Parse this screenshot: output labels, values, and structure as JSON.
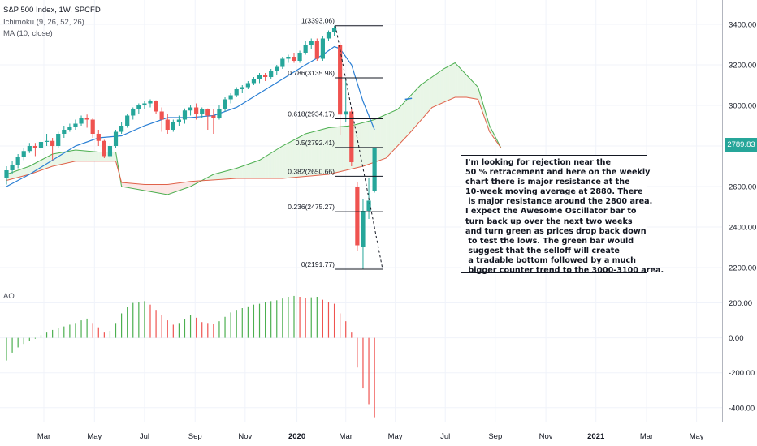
{
  "legend": {
    "title": "S&P 500 Index, 1W, SPCFD",
    "ichimoku": "Ichimoku (9, 26, 52, 26)",
    "ma": "MA (10, close)",
    "ao": "AO"
  },
  "colors": {
    "up": "#26a69a",
    "down": "#ef5350",
    "ma": "#2a7fd4",
    "cloud_top": "#4caf50",
    "cloud_bottom": "#e0624a",
    "cloud_fill": "#e9f6e7",
    "cloud_fill_red": "#fce7e6",
    "fib": "#131722",
    "ao_green": "#4caf50",
    "ao_red": "#ef5350"
  },
  "annotation": "I'm looking for rejection near the\n50 % retracement and here on the weekly\nchart there is major resistance at the\n10-week moving average at 2880. There\n is major resistance around the 2800 area.\nI expect the Awesome Oscillator bar to\nturn back up over the next two weeks\nand turn green as prices drop back down\n to test the lows. The green bar would\n suggest that the selloff will create\n a tradable bottom followed by a much\n bigger counter trend to the 3000-3100 area.",
  "current_price": "2789.83",
  "chart_data": [
    {
      "type": "candlestick",
      "title": "S&P 500 Index, 1W, SPCFD",
      "y_ticks": [
        2200,
        2400,
        2600,
        2800,
        3000,
        3200,
        3400
      ],
      "y_tick_labels": [
        "2200.00",
        "2400.00",
        "2600.00",
        "2800.00",
        "3000.00",
        "3200.00",
        "3400.00"
      ],
      "ylim": [
        2120,
        3520
      ],
      "x_tick_labels": [
        "Mar",
        "May",
        "Jul",
        "Sep",
        "Nov",
        "2020",
        "Mar",
        "May",
        "Jul",
        "Sep",
        "Nov",
        "2021",
        "Mar",
        "May"
      ],
      "x_tick_weeks": [
        6.5,
        15.3,
        24,
        32.8,
        41.5,
        50.5,
        59,
        67.6,
        76.3,
        85,
        93.8,
        102.5,
        111.3,
        120
      ],
      "candles": [
        {
          "w": 0,
          "o": 2640,
          "h": 2700,
          "l": 2610,
          "c": 2680
        },
        {
          "w": 1,
          "o": 2680,
          "h": 2725,
          "l": 2660,
          "c": 2705
        },
        {
          "w": 2,
          "o": 2705,
          "h": 2760,
          "l": 2690,
          "c": 2745
        },
        {
          "w": 3,
          "o": 2745,
          "h": 2790,
          "l": 2730,
          "c": 2775
        },
        {
          "w": 4,
          "o": 2775,
          "h": 2815,
          "l": 2765,
          "c": 2800
        },
        {
          "w": 5,
          "o": 2800,
          "h": 2815,
          "l": 2750,
          "c": 2790
        },
        {
          "w": 6,
          "o": 2790,
          "h": 2830,
          "l": 2775,
          "c": 2820
        },
        {
          "w": 7,
          "o": 2820,
          "h": 2860,
          "l": 2800,
          "c": 2825
        },
        {
          "w": 8,
          "o": 2825,
          "h": 2840,
          "l": 2730,
          "c": 2800
        },
        {
          "w": 9,
          "o": 2800,
          "h": 2870,
          "l": 2790,
          "c": 2860
        },
        {
          "w": 10,
          "o": 2860,
          "h": 2900,
          "l": 2840,
          "c": 2880
        },
        {
          "w": 11,
          "o": 2880,
          "h": 2910,
          "l": 2870,
          "c": 2895
        },
        {
          "w": 12,
          "o": 2895,
          "h": 2930,
          "l": 2880,
          "c": 2910
        },
        {
          "w": 13,
          "o": 2910,
          "h": 2950,
          "l": 2900,
          "c": 2940
        },
        {
          "w": 14,
          "o": 2940,
          "h": 2955,
          "l": 2890,
          "c": 2930
        },
        {
          "w": 15,
          "o": 2930,
          "h": 2940,
          "l": 2840,
          "c": 2860
        },
        {
          "w": 16,
          "o": 2860,
          "h": 2880,
          "l": 2800,
          "c": 2825
        },
        {
          "w": 17,
          "o": 2825,
          "h": 2830,
          "l": 2740,
          "c": 2750
        },
        {
          "w": 18,
          "o": 2750,
          "h": 2815,
          "l": 2740,
          "c": 2800
        },
        {
          "w": 19,
          "o": 2800,
          "h": 2880,
          "l": 2790,
          "c": 2870
        },
        {
          "w": 20,
          "o": 2870,
          "h": 2920,
          "l": 2860,
          "c": 2900
        },
        {
          "w": 21,
          "o": 2900,
          "h": 2960,
          "l": 2890,
          "c": 2950
        },
        {
          "w": 22,
          "o": 2950,
          "h": 2990,
          "l": 2930,
          "c": 2980
        },
        {
          "w": 23,
          "o": 2980,
          "h": 3010,
          "l": 2960,
          "c": 3000
        },
        {
          "w": 24,
          "o": 3000,
          "h": 3020,
          "l": 2980,
          "c": 3010
        },
        {
          "w": 25,
          "o": 3010,
          "h": 3030,
          "l": 2990,
          "c": 3020
        },
        {
          "w": 26,
          "o": 3020,
          "h": 3025,
          "l": 2960,
          "c": 2970
        },
        {
          "w": 27,
          "o": 2970,
          "h": 2990,
          "l": 2870,
          "c": 2930
        },
        {
          "w": 28,
          "o": 2930,
          "h": 2960,
          "l": 2860,
          "c": 2880
        },
        {
          "w": 29,
          "o": 2880,
          "h": 2930,
          "l": 2870,
          "c": 2920
        },
        {
          "w": 30,
          "o": 2920,
          "h": 2950,
          "l": 2900,
          "c": 2930
        },
        {
          "w": 31,
          "o": 2930,
          "h": 2985,
          "l": 2910,
          "c": 2975
        },
        {
          "w": 32,
          "o": 2975,
          "h": 3000,
          "l": 2950,
          "c": 2990
        },
        {
          "w": 33,
          "o": 2990,
          "h": 3010,
          "l": 2930,
          "c": 2960
        },
        {
          "w": 34,
          "o": 2960,
          "h": 2990,
          "l": 2940,
          "c": 2980
        },
        {
          "w": 35,
          "o": 2980,
          "h": 2985,
          "l": 2880,
          "c": 2950
        },
        {
          "w": 36,
          "o": 2950,
          "h": 2980,
          "l": 2860,
          "c": 2940
        },
        {
          "w": 37,
          "o": 2940,
          "h": 3000,
          "l": 2930,
          "c": 2980
        },
        {
          "w": 38,
          "o": 2980,
          "h": 3040,
          "l": 2970,
          "c": 3030
        },
        {
          "w": 39,
          "o": 3030,
          "h": 3060,
          "l": 3010,
          "c": 3050
        },
        {
          "w": 40,
          "o": 3050,
          "h": 3090,
          "l": 3040,
          "c": 3080
        },
        {
          "w": 41,
          "o": 3080,
          "h": 3100,
          "l": 3060,
          "c": 3090
        },
        {
          "w": 42,
          "o": 3090,
          "h": 3120,
          "l": 3080,
          "c": 3110
        },
        {
          "w": 43,
          "o": 3110,
          "h": 3140,
          "l": 3100,
          "c": 3130
        },
        {
          "w": 44,
          "o": 3130,
          "h": 3160,
          "l": 3110,
          "c": 3150
        },
        {
          "w": 45,
          "o": 3150,
          "h": 3160,
          "l": 3120,
          "c": 3140
        },
        {
          "w": 46,
          "o": 3140,
          "h": 3180,
          "l": 3130,
          "c": 3170
        },
        {
          "w": 47,
          "o": 3170,
          "h": 3200,
          "l": 3150,
          "c": 3190
        },
        {
          "w": 48,
          "o": 3190,
          "h": 3240,
          "l": 3180,
          "c": 3230
        },
        {
          "w": 49,
          "o": 3230,
          "h": 3250,
          "l": 3210,
          "c": 3240
        },
        {
          "w": 50,
          "o": 3240,
          "h": 3260,
          "l": 3210,
          "c": 3220
        },
        {
          "w": 51,
          "o": 3220,
          "h": 3270,
          "l": 3210,
          "c": 3260
        },
        {
          "w": 52,
          "o": 3260,
          "h": 3320,
          "l": 3250,
          "c": 3300
        },
        {
          "w": 53,
          "o": 3300,
          "h": 3330,
          "l": 3280,
          "c": 3320
        },
        {
          "w": 54,
          "o": 3320,
          "h": 3330,
          "l": 3220,
          "c": 3230
        },
        {
          "w": 55,
          "o": 3230,
          "h": 3340,
          "l": 3220,
          "c": 3330
        },
        {
          "w": 56,
          "o": 3330,
          "h": 3370,
          "l": 3320,
          "c": 3360
        },
        {
          "w": 57,
          "o": 3360,
          "h": 3393,
          "l": 3340,
          "c": 3380
        },
        {
          "w": 58,
          "o": 3300,
          "h": 3310,
          "l": 2855,
          "c": 2955
        },
        {
          "w": 59,
          "o": 2955,
          "h": 3130,
          "l": 2920,
          "c": 2970
        },
        {
          "w": 60,
          "o": 2970,
          "h": 2980,
          "l": 2700,
          "c": 2720
        },
        {
          "w": 61,
          "o": 2600,
          "h": 2620,
          "l": 2280,
          "c": 2310
        },
        {
          "w": 62,
          "o": 2300,
          "h": 2540,
          "l": 2191,
          "c": 2480
        },
        {
          "w": 63,
          "o": 2480,
          "h": 2640,
          "l": 2440,
          "c": 2530
        },
        {
          "w": 64,
          "o": 2580,
          "h": 2790,
          "l": 2570,
          "c": 2790
        }
      ],
      "ma_10": [
        {
          "w": 0,
          "v": 2600
        },
        {
          "w": 4,
          "v": 2660
        },
        {
          "w": 8,
          "v": 2730
        },
        {
          "w": 12,
          "v": 2800
        },
        {
          "w": 16,
          "v": 2840
        },
        {
          "w": 20,
          "v": 2850
        },
        {
          "w": 24,
          "v": 2900
        },
        {
          "w": 28,
          "v": 2940
        },
        {
          "w": 32,
          "v": 2940
        },
        {
          "w": 36,
          "v": 2950
        },
        {
          "w": 40,
          "v": 2990
        },
        {
          "w": 44,
          "v": 3060
        },
        {
          "w": 48,
          "v": 3130
        },
        {
          "w": 52,
          "v": 3200
        },
        {
          "w": 55,
          "v": 3250
        },
        {
          "w": 57,
          "v": 3290
        },
        {
          "w": 58,
          "v": 3280
        },
        {
          "w": 60,
          "v": 3200
        },
        {
          "w": 62,
          "v": 3020
        },
        {
          "w": 64,
          "v": 2880
        }
      ],
      "ichimoku_span_a": [
        {
          "w": 0,
          "v": 2660
        },
        {
          "w": 4,
          "v": 2700
        },
        {
          "w": 8,
          "v": 2760
        },
        {
          "w": 12,
          "v": 2780
        },
        {
          "w": 16,
          "v": 2770
        },
        {
          "w": 19,
          "v": 2770
        },
        {
          "w": 20,
          "v": 2600
        },
        {
          "w": 24,
          "v": 2580
        },
        {
          "w": 28,
          "v": 2560
        },
        {
          "w": 32,
          "v": 2600
        },
        {
          "w": 36,
          "v": 2660
        },
        {
          "w": 40,
          "v": 2690
        },
        {
          "w": 44,
          "v": 2730
        },
        {
          "w": 48,
          "v": 2800
        },
        {
          "w": 52,
          "v": 2860
        },
        {
          "w": 56,
          "v": 2890
        },
        {
          "w": 60,
          "v": 2900
        },
        {
          "w": 64,
          "v": 2930
        },
        {
          "w": 68,
          "v": 2980
        },
        {
          "w": 72,
          "v": 3100
        },
        {
          "w": 76,
          "v": 3180
        },
        {
          "w": 78,
          "v": 3210
        },
        {
          "w": 80,
          "v": 3150
        },
        {
          "w": 82,
          "v": 3090
        },
        {
          "w": 84,
          "v": 2900
        },
        {
          "w": 86,
          "v": 2790
        },
        {
          "w": 88,
          "v": 2790
        }
      ],
      "ichimoku_span_b": [
        {
          "w": 0,
          "v": 2630
        },
        {
          "w": 4,
          "v": 2660
        },
        {
          "w": 8,
          "v": 2700
        },
        {
          "w": 12,
          "v": 2725
        },
        {
          "w": 19,
          "v": 2725
        },
        {
          "w": 20,
          "v": 2620
        },
        {
          "w": 24,
          "v": 2610
        },
        {
          "w": 28,
          "v": 2610
        },
        {
          "w": 32,
          "v": 2625
        },
        {
          "w": 40,
          "v": 2640
        },
        {
          "w": 48,
          "v": 2640
        },
        {
          "w": 56,
          "v": 2660
        },
        {
          "w": 62,
          "v": 2700
        },
        {
          "w": 66,
          "v": 2740
        },
        {
          "w": 70,
          "v": 2860
        },
        {
          "w": 74,
          "v": 2990
        },
        {
          "w": 78,
          "v": 3040
        },
        {
          "w": 80,
          "v": 3040
        },
        {
          "w": 82,
          "v": 3030
        },
        {
          "w": 84,
          "v": 2870
        },
        {
          "w": 86,
          "v": 2790
        },
        {
          "w": 88,
          "v": 2790
        }
      ],
      "lagging_line_stub": [
        {
          "w": 69.3,
          "v": 3030
        },
        {
          "w": 70.5,
          "v": 3035
        }
      ],
      "fibonacci": [
        {
          "ratio": "1",
          "label": "1(3393.06)",
          "price": 3393.06
        },
        {
          "ratio": "0.786",
          "label": "0.786(3135.98)",
          "price": 3135.98
        },
        {
          "ratio": "0.618",
          "label": "0.618(2934.17)",
          "price": 2934.17
        },
        {
          "ratio": "0.5",
          "label": "0.5(2792.41)",
          "price": 2792.41
        },
        {
          "ratio": "0.382",
          "label": "0.382(2650.66)",
          "price": 2650.66
        },
        {
          "ratio": "0.236",
          "label": "0.236(2475.27)",
          "price": 2475.27
        },
        {
          "ratio": "0",
          "label": "0(2191.77)",
          "price": 2191.77
        }
      ],
      "current_price_line": 2789.83
    },
    {
      "type": "bar",
      "title": "AO",
      "y_ticks": [
        -400,
        -200,
        0,
        200
      ],
      "y_tick_labels": [
        "-400.00",
        "-200.00",
        "0.00",
        "200.00"
      ],
      "ylim": [
        -480,
        300
      ],
      "values": [
        -130,
        -85,
        -55,
        -35,
        -20,
        -5,
        15,
        30,
        45,
        55,
        65,
        75,
        85,
        100,
        110,
        85,
        60,
        30,
        40,
        85,
        140,
        175,
        200,
        205,
        210,
        190,
        160,
        130,
        100,
        75,
        85,
        105,
        130,
        115,
        90,
        85,
        80,
        95,
        120,
        145,
        160,
        170,
        180,
        190,
        195,
        205,
        210,
        215,
        225,
        235,
        240,
        235,
        228,
        232,
        235,
        218,
        205,
        195,
        140,
        95,
        30,
        -170,
        -290,
        -380,
        -455
      ],
      "colors": [
        "g",
        "g",
        "g",
        "g",
        "g",
        "g",
        "g",
        "g",
        "g",
        "g",
        "g",
        "g",
        "g",
        "g",
        "g",
        "r",
        "r",
        "r",
        "g",
        "g",
        "g",
        "g",
        "g",
        "g",
        "g",
        "r",
        "r",
        "r",
        "r",
        "r",
        "g",
        "g",
        "g",
        "r",
        "r",
        "r",
        "r",
        "g",
        "g",
        "g",
        "g",
        "g",
        "g",
        "g",
        "g",
        "g",
        "g",
        "g",
        "g",
        "g",
        "g",
        "r",
        "r",
        "g",
        "g",
        "r",
        "r",
        "r",
        "r",
        "r",
        "r",
        "r",
        "r",
        "r",
        "r"
      ]
    }
  ]
}
